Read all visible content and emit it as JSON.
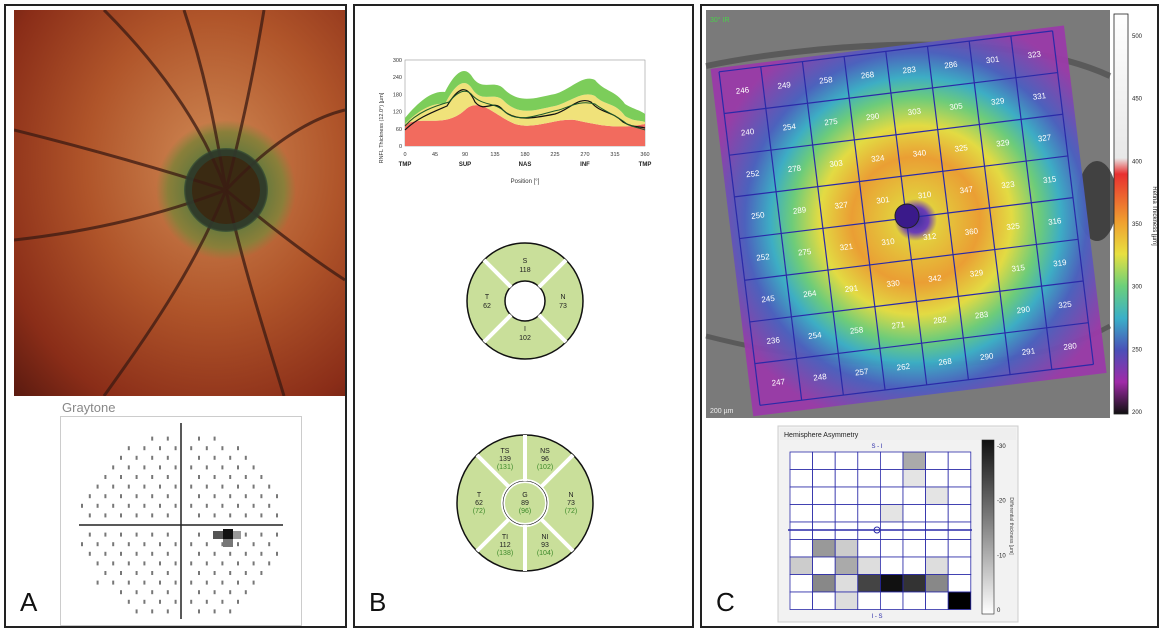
{
  "panels": {
    "a": {
      "letter": "A",
      "graytone_title": "Graytone"
    },
    "b": {
      "letter": "B",
      "profile_chart": {
        "ylabel": "RNFL Thickness (12.0°) [µm]",
        "xlabel": "Position [°]",
        "y_ticks": [
          "300",
          "240",
          "180",
          "120",
          "60",
          "0"
        ],
        "x_ticks": [
          "0",
          "45",
          "90",
          "135",
          "180",
          "225",
          "270",
          "315",
          "360"
        ],
        "x_sector_labels": [
          "TMP",
          "SUP",
          "NAS",
          "INF",
          "TMP"
        ]
      },
      "quadrant_chart": {
        "top": {
          "label": "S",
          "value": "118"
        },
        "left": {
          "label": "T",
          "value": "62"
        },
        "right": {
          "label": "N",
          "value": "73"
        },
        "bottom": {
          "label": "I",
          "value": "102"
        }
      },
      "sector_chart": {
        "ts": {
          "label": "TS",
          "value": "139",
          "normal": "(131)"
        },
        "ns": {
          "label": "NS",
          "value": "96",
          "normal": "(102)"
        },
        "t": {
          "label": "T",
          "value": "62",
          "normal": "(72)"
        },
        "g": {
          "label": "G",
          "value": "89",
          "normal": "(96)"
        },
        "n": {
          "label": "N",
          "value": "73",
          "normal": "(72)"
        },
        "ti": {
          "label": "TI",
          "value": "112",
          "normal": "(138)"
        },
        "ni": {
          "label": "NI",
          "value": "93",
          "normal": "(104)"
        }
      }
    },
    "c": {
      "letter": "C",
      "scan_label": "30° IR",
      "scale_bar_label": "200 µm",
      "colorbar": {
        "label": "Retina Thickness [µm]",
        "ticks": [
          "500",
          "450",
          "400",
          "350",
          "300",
          "250",
          "200"
        ]
      },
      "thickness_grid": [
        [
          "246",
          "249",
          "258",
          "268",
          "283",
          "286",
          "301",
          "323"
        ],
        [
          "240",
          "254",
          "275",
          "290",
          "303",
          "305",
          "329",
          "331"
        ],
        [
          "252",
          "278",
          "303",
          "324",
          "340",
          "325",
          "329",
          "327"
        ],
        [
          "250",
          "289",
          "327",
          "301",
          "310",
          "347",
          "323",
          "315"
        ],
        [
          "252",
          "275",
          "321",
          "310",
          "312",
          "360",
          "325",
          "316"
        ],
        [
          "245",
          "264",
          "291",
          "330",
          "342",
          "329",
          "315",
          "319"
        ],
        [
          "236",
          "254",
          "258",
          "271",
          "282",
          "283",
          "290",
          "325"
        ],
        [
          "247",
          "248",
          "257",
          "262",
          "268",
          "290",
          "291",
          "280"
        ]
      ],
      "asymmetry": {
        "title": "Hemisphere Asymmetry",
        "top_label": "S - I",
        "bottom_label": "I - S",
        "scale_label": "Differential thickness [µm]",
        "scale_ticks": [
          "-30",
          "-20",
          "-10",
          "0"
        ]
      }
    }
  },
  "colors": {
    "panel_border": "#222222",
    "sector_fill": "#c9df9a",
    "sector_normal_text": "#3d8a2a",
    "grid_line": "#2a2aa8"
  }
}
